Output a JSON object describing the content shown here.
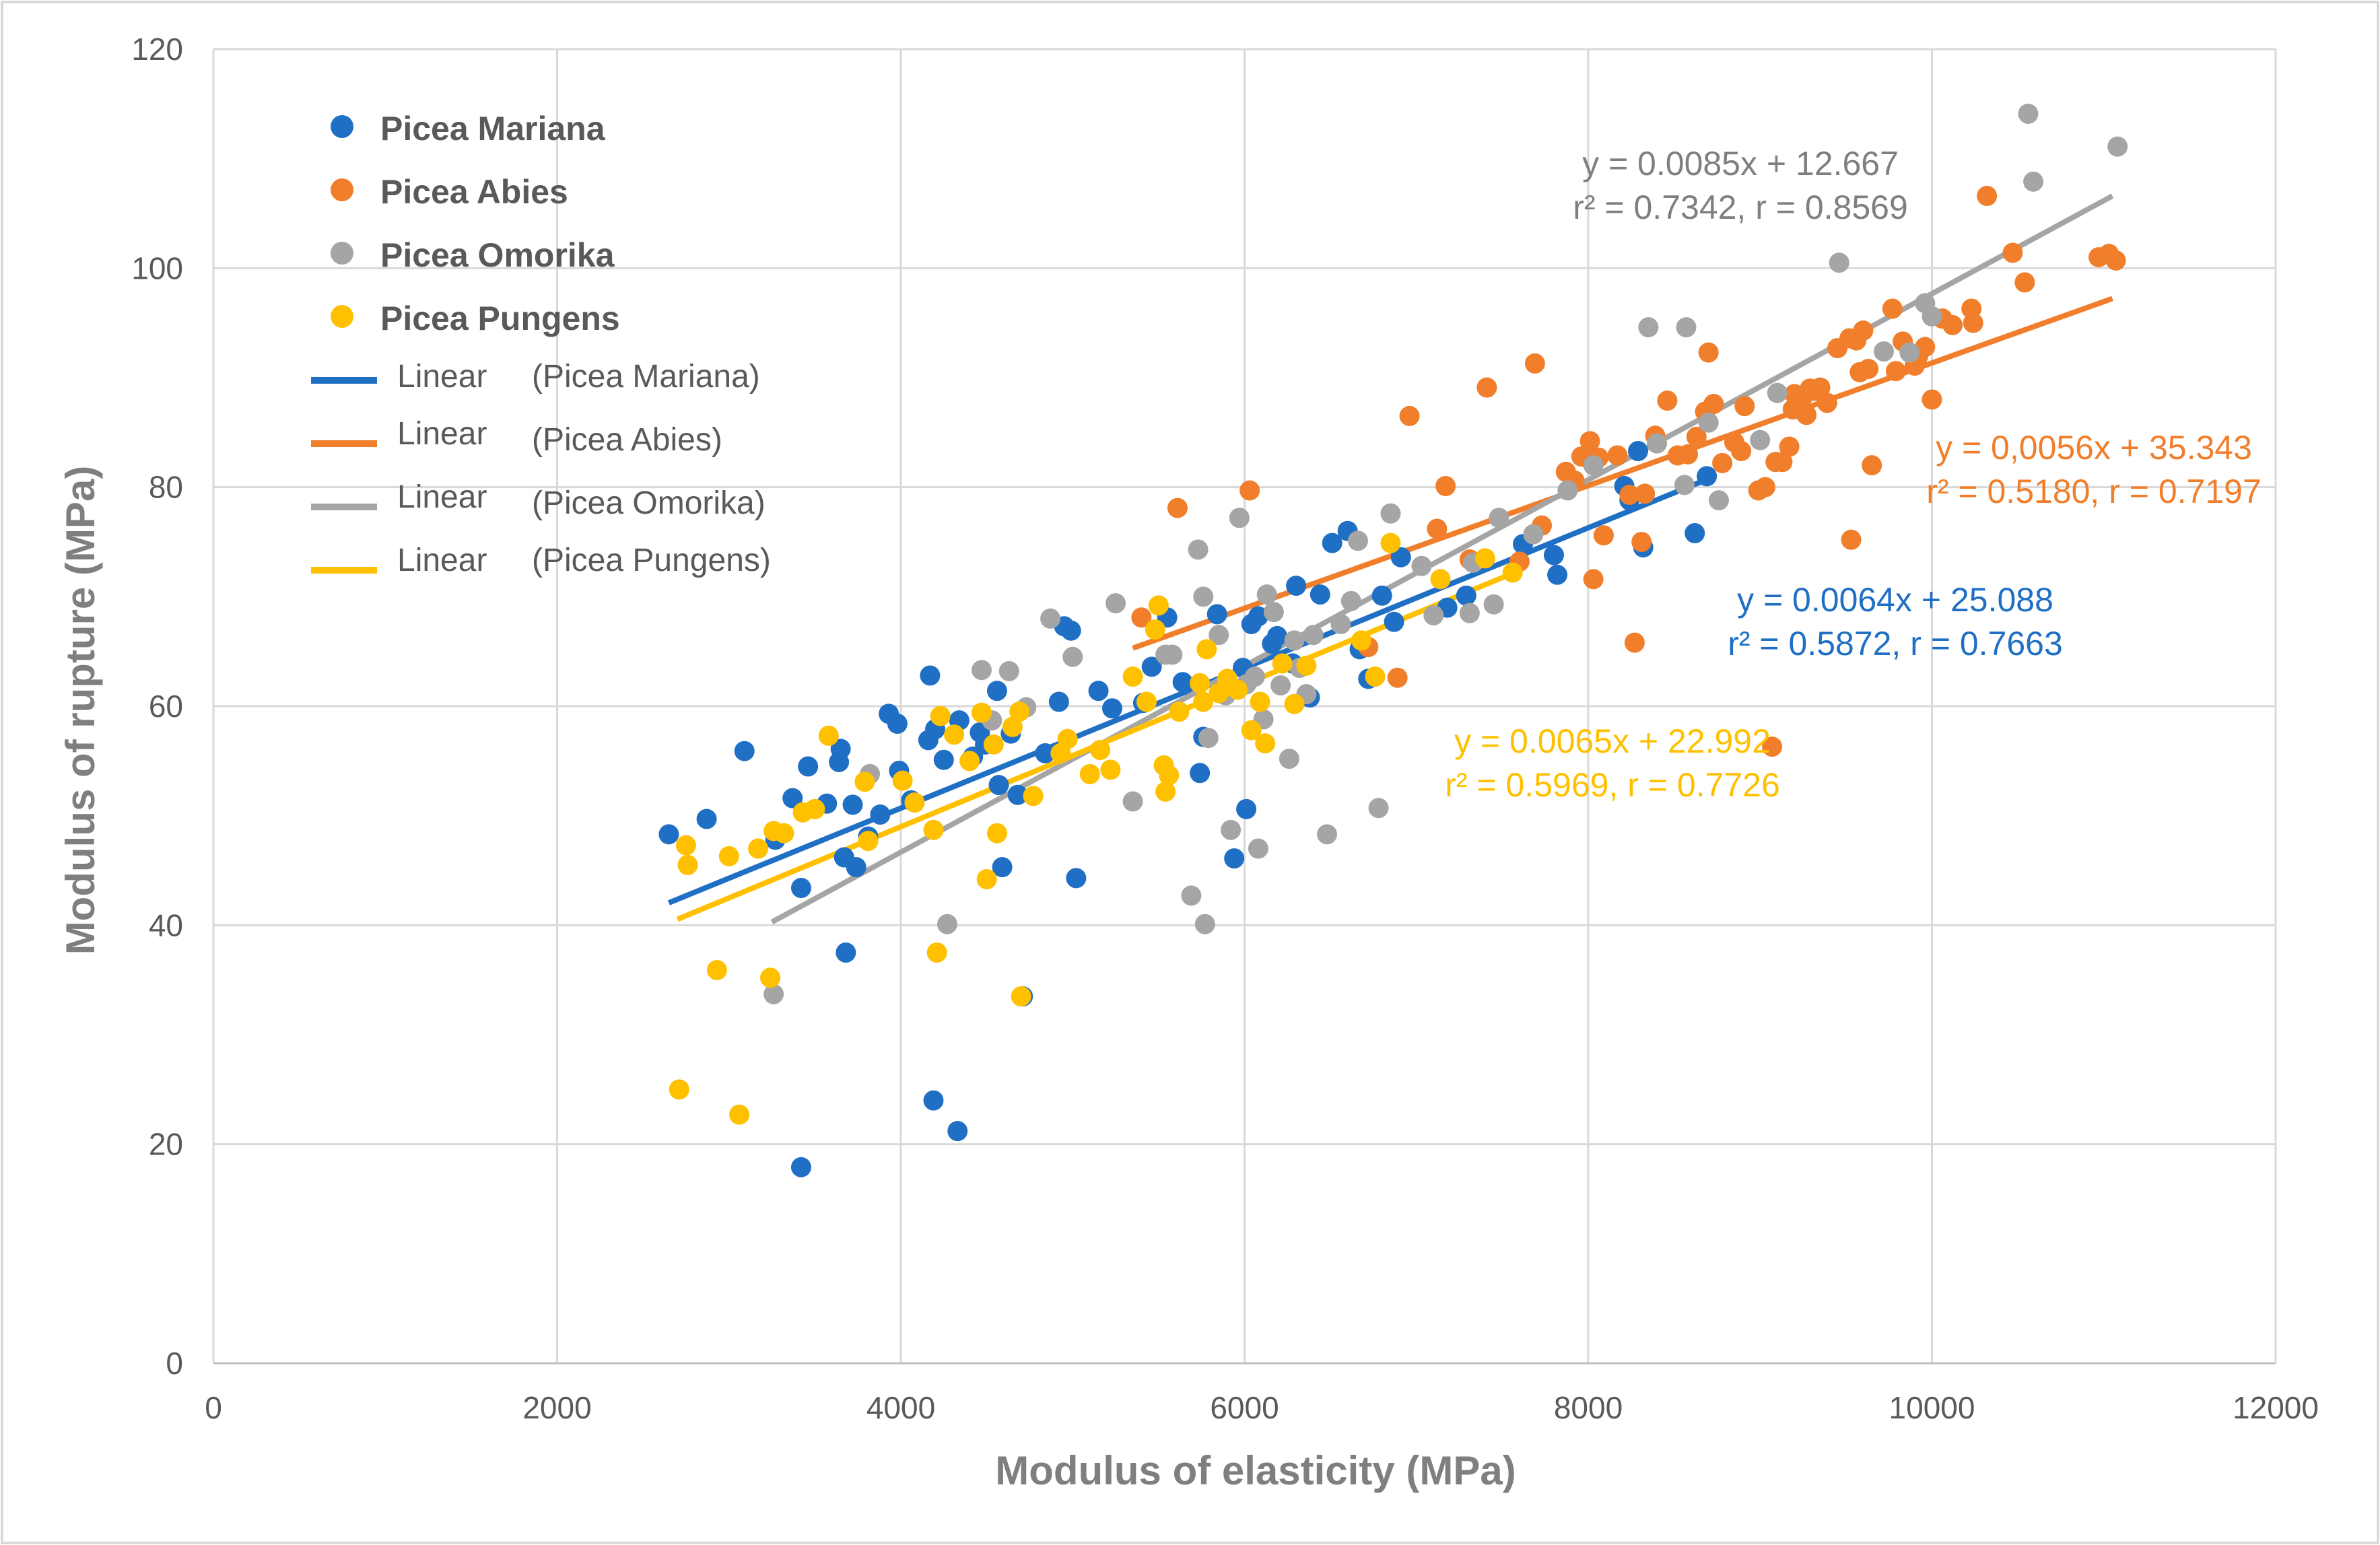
{
  "chart_data": {
    "type": "scatter",
    "title": "",
    "xlabel": "Modulus of elasticity (MPa)",
    "ylabel": "Modulus of rupture (MPa)",
    "xlim": [
      0,
      12000
    ],
    "ylim": [
      0,
      120
    ],
    "xticks": [
      0,
      2000,
      4000,
      6000,
      8000,
      10000,
      12000
    ],
    "yticks": [
      0,
      20,
      40,
      60,
      80,
      100,
      120
    ],
    "grid": true,
    "legend_position": "top-left",
    "series": [
      {
        "name": "Picea Mariana",
        "color": "#1f6fc5",
        "trend_label": "Linear",
        "trend_name": "(Picea Mariana)",
        "trend_range": [
          2650,
          8700
        ],
        "slope": 0.0064,
        "intercept": 25.088,
        "equation": "y = 0.0064x + 25.088",
        "r2_text": "r² = 0.5872, r = 0.7663",
        "points": [
          [
            2650,
            48.3
          ],
          [
            2870,
            49.7
          ],
          [
            3090,
            55.9
          ],
          [
            3270,
            47.8
          ],
          [
            3370,
            51.6
          ],
          [
            3420,
            43.4
          ],
          [
            3460,
            54.5
          ],
          [
            3570,
            51.1
          ],
          [
            3640,
            54.9
          ],
          [
            3650,
            56.1
          ],
          [
            3670,
            46.2
          ],
          [
            3680,
            37.5
          ],
          [
            3720,
            51.0
          ],
          [
            3740,
            45.3
          ],
          [
            3810,
            48.1
          ],
          [
            3880,
            50.1
          ],
          [
            3930,
            59.3
          ],
          [
            3980,
            58.4
          ],
          [
            3990,
            54.1
          ],
          [
            4060,
            51.4
          ],
          [
            4160,
            56.9
          ],
          [
            4170,
            62.8
          ],
          [
            4200,
            57.9
          ],
          [
            4250,
            55.1
          ],
          [
            4340,
            58.7
          ],
          [
            4420,
            55.4
          ],
          [
            4460,
            57.6
          ],
          [
            4490,
            56.5
          ],
          [
            4560,
            61.4
          ],
          [
            4570,
            52.8
          ],
          [
            4590,
            45.3
          ],
          [
            4640,
            57.5
          ],
          [
            4680,
            51.9
          ],
          [
            4710,
            33.5
          ],
          [
            4840,
            55.7
          ],
          [
            4920,
            60.4
          ],
          [
            4950,
            67.3
          ],
          [
            4990,
            66.9
          ],
          [
            5020,
            44.3
          ],
          [
            5150,
            61.4
          ],
          [
            5230,
            59.8
          ],
          [
            5410,
            60.3
          ],
          [
            5460,
            63.6
          ],
          [
            5550,
            68.1
          ],
          [
            5640,
            62.2
          ],
          [
            5740,
            53.9
          ],
          [
            5760,
            57.2
          ],
          [
            5840,
            68.4
          ],
          [
            5940,
            46.1
          ],
          [
            5990,
            63.5
          ],
          [
            6010,
            50.6
          ],
          [
            6040,
            67.5
          ],
          [
            6080,
            68.2
          ],
          [
            6160,
            65.7
          ],
          [
            6190,
            66.4
          ],
          [
            6280,
            63.9
          ],
          [
            6300,
            71.0
          ],
          [
            6380,
            60.8
          ],
          [
            6440,
            70.2
          ],
          [
            6510,
            74.9
          ],
          [
            6600,
            76.0
          ],
          [
            6670,
            65.2
          ],
          [
            6720,
            62.5
          ],
          [
            6800,
            70.1
          ],
          [
            6870,
            67.7
          ],
          [
            6910,
            73.6
          ],
          [
            7180,
            69.0
          ],
          [
            7290,
            70.1
          ],
          [
            7620,
            74.8
          ],
          [
            7800,
            73.8
          ],
          [
            7820,
            72.0
          ],
          [
            8210,
            80.1
          ],
          [
            8240,
            78.8
          ],
          [
            8290,
            83.3
          ],
          [
            8320,
            74.5
          ],
          [
            8620,
            75.8
          ],
          [
            8690,
            81.0
          ],
          [
            4190,
            24.0
          ],
          [
            4330,
            21.2
          ],
          [
            3420,
            17.9
          ]
        ]
      },
      {
        "name": "Picea Abies",
        "color": "#f07e2a",
        "trend_label": "Linear",
        "trend_name": "(Picea Abies)",
        "trend_range": [
          5350,
          11050
        ],
        "slope": 0.0056,
        "intercept": 35.343,
        "equation": "y = 0,0056x + 35.343",
        "r2_text": "r² = 0.5180, r = 0.7197",
        "points": [
          [
            5400,
            68.1
          ],
          [
            5610,
            78.1
          ],
          [
            6030,
            79.7
          ],
          [
            6720,
            65.4
          ],
          [
            6890,
            62.6
          ],
          [
            6960,
            86.5
          ],
          [
            7120,
            76.2
          ],
          [
            7170,
            80.1
          ],
          [
            7310,
            73.4
          ],
          [
            7410,
            89.1
          ],
          [
            7600,
            73.2
          ],
          [
            7690,
            91.3
          ],
          [
            7730,
            76.5
          ],
          [
            7870,
            81.4
          ],
          [
            7920,
            80.6
          ],
          [
            7960,
            82.8
          ],
          [
            7990,
            82.7
          ],
          [
            8010,
            84.2
          ],
          [
            8030,
            71.6
          ],
          [
            8060,
            82.7
          ],
          [
            8090,
            75.6
          ],
          [
            8170,
            82.9
          ],
          [
            8240,
            79.3
          ],
          [
            8270,
            65.8
          ],
          [
            8310,
            75.0
          ],
          [
            8330,
            79.4
          ],
          [
            8390,
            84.7
          ],
          [
            8460,
            87.9
          ],
          [
            8520,
            82.9
          ],
          [
            8580,
            83.0
          ],
          [
            8630,
            84.6
          ],
          [
            8680,
            86.9
          ],
          [
            8700,
            92.3
          ],
          [
            8730,
            87.6
          ],
          [
            8780,
            82.2
          ],
          [
            8850,
            84.1
          ],
          [
            8890,
            83.3
          ],
          [
            8910,
            87.4
          ],
          [
            8990,
            79.7
          ],
          [
            9030,
            80.0
          ],
          [
            9070,
            56.3
          ],
          [
            9090,
            82.3
          ],
          [
            9130,
            82.3
          ],
          [
            9170,
            83.7
          ],
          [
            9190,
            87.1
          ],
          [
            9200,
            88.5
          ],
          [
            9250,
            88.3
          ],
          [
            9270,
            86.6
          ],
          [
            9290,
            89.0
          ],
          [
            9320,
            88.8
          ],
          [
            9350,
            89.1
          ],
          [
            9390,
            87.7
          ],
          [
            9450,
            92.7
          ],
          [
            9520,
            93.6
          ],
          [
            9530,
            75.2
          ],
          [
            9560,
            93.4
          ],
          [
            9580,
            90.5
          ],
          [
            9600,
            94.3
          ],
          [
            9630,
            90.8
          ],
          [
            9650,
            82.0
          ],
          [
            9770,
            96.3
          ],
          [
            9790,
            90.6
          ],
          [
            9830,
            93.3
          ],
          [
            9900,
            91.1
          ],
          [
            9920,
            92.0
          ],
          [
            9960,
            92.8
          ],
          [
            10000,
            88.0
          ],
          [
            10060,
            95.4
          ],
          [
            10120,
            94.8
          ],
          [
            10230,
            96.3
          ],
          [
            10240,
            95.0
          ],
          [
            10320,
            106.6
          ],
          [
            10470,
            101.4
          ],
          [
            10540,
            98.7
          ],
          [
            10970,
            101.0
          ],
          [
            11030,
            101.3
          ],
          [
            11070,
            100.7
          ]
        ]
      },
      {
        "name": "Picea Omorika",
        "color": "#a5a5a5",
        "trend_label": "Linear",
        "trend_name": "(Picea Omorika)",
        "trend_range": [
          3250,
          11050
        ],
        "slope": 0.0085,
        "intercept": 12.667,
        "equation": "y = 0.0085x + 12.667",
        "r2_text": "r² = 0.7342, r = 0.8569",
        "points": [
          [
            3260,
            33.7
          ],
          [
            3820,
            53.8
          ],
          [
            4270,
            40.1
          ],
          [
            4470,
            63.3
          ],
          [
            4530,
            58.7
          ],
          [
            4630,
            63.2
          ],
          [
            4730,
            59.9
          ],
          [
            4870,
            68.0
          ],
          [
            5000,
            64.5
          ],
          [
            5250,
            69.4
          ],
          [
            5350,
            51.3
          ],
          [
            5540,
            64.7
          ],
          [
            5580,
            64.7
          ],
          [
            5690,
            42.7
          ],
          [
            5730,
            74.3
          ],
          [
            5760,
            70.0
          ],
          [
            5770,
            40.1
          ],
          [
            5790,
            57.1
          ],
          [
            5850,
            66.5
          ],
          [
            5890,
            61.0
          ],
          [
            5920,
            48.7
          ],
          [
            5970,
            77.2
          ],
          [
            6010,
            62.0
          ],
          [
            6060,
            62.7
          ],
          [
            6080,
            47.0
          ],
          [
            6110,
            58.8
          ],
          [
            6130,
            70.2
          ],
          [
            6170,
            68.6
          ],
          [
            6210,
            61.9
          ],
          [
            6260,
            55.2
          ],
          [
            6290,
            66.0
          ],
          [
            6320,
            63.5
          ],
          [
            6360,
            61.1
          ],
          [
            6400,
            66.5
          ],
          [
            6480,
            48.3
          ],
          [
            6560,
            67.5
          ],
          [
            6620,
            69.6
          ],
          [
            6660,
            75.1
          ],
          [
            6780,
            50.7
          ],
          [
            6850,
            77.6
          ],
          [
            7030,
            72.8
          ],
          [
            7100,
            68.3
          ],
          [
            7310,
            68.5
          ],
          [
            7330,
            73.1
          ],
          [
            7450,
            69.3
          ],
          [
            7480,
            77.2
          ],
          [
            7680,
            75.7
          ],
          [
            7880,
            79.7
          ],
          [
            8030,
            82.0
          ],
          [
            8350,
            94.6
          ],
          [
            8400,
            84.0
          ],
          [
            8560,
            80.2
          ],
          [
            8570,
            94.6
          ],
          [
            8700,
            85.9
          ],
          [
            8760,
            78.8
          ],
          [
            9000,
            84.3
          ],
          [
            9100,
            88.6
          ],
          [
            9460,
            100.5
          ],
          [
            9720,
            92.4
          ],
          [
            9870,
            92.3
          ],
          [
            9960,
            96.8
          ],
          [
            10000,
            95.6
          ],
          [
            10560,
            114.1
          ],
          [
            10590,
            107.9
          ],
          [
            11080,
            111.1
          ]
        ]
      },
      {
        "name": "Picea Pungens",
        "color": "#ffc000",
        "trend_label": "Linear",
        "trend_name": "(Picea Pungens)",
        "trend_range": [
          2700,
          7550
        ],
        "slope": 0.0065,
        "intercept": 22.992,
        "equation": "y = 0.0065x + 22.992",
        "r2_text": "r² = 0.5969, r = 0.7726",
        "points": [
          [
            2710,
            25.0
          ],
          [
            2750,
            47.3
          ],
          [
            2760,
            45.5
          ],
          [
            2930,
            35.9
          ],
          [
            3000,
            46.3
          ],
          [
            3060,
            22.7
          ],
          [
            3170,
            47.0
          ],
          [
            3240,
            35.2
          ],
          [
            3260,
            48.6
          ],
          [
            3320,
            48.4
          ],
          [
            3430,
            50.3
          ],
          [
            3500,
            50.6
          ],
          [
            3580,
            57.3
          ],
          [
            3790,
            53.1
          ],
          [
            3810,
            47.7
          ],
          [
            4010,
            53.2
          ],
          [
            4080,
            51.2
          ],
          [
            4190,
            48.7
          ],
          [
            4210,
            37.5
          ],
          [
            4230,
            59.1
          ],
          [
            4310,
            57.4
          ],
          [
            4400,
            55.0
          ],
          [
            4470,
            59.4
          ],
          [
            4500,
            44.2
          ],
          [
            4540,
            56.5
          ],
          [
            4560,
            48.4
          ],
          [
            4650,
            58.1
          ],
          [
            4690,
            59.5
          ],
          [
            4700,
            33.5
          ],
          [
            4770,
            51.8
          ],
          [
            4930,
            55.7
          ],
          [
            4970,
            57.0
          ],
          [
            5100,
            53.8
          ],
          [
            5160,
            56.0
          ],
          [
            5220,
            54.2
          ],
          [
            5350,
            62.7
          ],
          [
            5430,
            60.4
          ],
          [
            5480,
            67.0
          ],
          [
            5500,
            69.2
          ],
          [
            5530,
            54.6
          ],
          [
            5540,
            52.2
          ],
          [
            5560,
            53.7
          ],
          [
            5620,
            59.5
          ],
          [
            5740,
            62.1
          ],
          [
            5760,
            60.4
          ],
          [
            5780,
            65.2
          ],
          [
            5850,
            61.2
          ],
          [
            5900,
            62.5
          ],
          [
            5960,
            61.5
          ],
          [
            6040,
            57.8
          ],
          [
            6090,
            60.4
          ],
          [
            6120,
            56.6
          ],
          [
            6220,
            63.9
          ],
          [
            6290,
            60.2
          ],
          [
            6360,
            63.7
          ],
          [
            6680,
            66.0
          ],
          [
            6760,
            62.7
          ],
          [
            6850,
            74.9
          ],
          [
            7140,
            71.6
          ],
          [
            7400,
            73.5
          ],
          [
            7560,
            72.2
          ]
        ]
      }
    ]
  }
}
